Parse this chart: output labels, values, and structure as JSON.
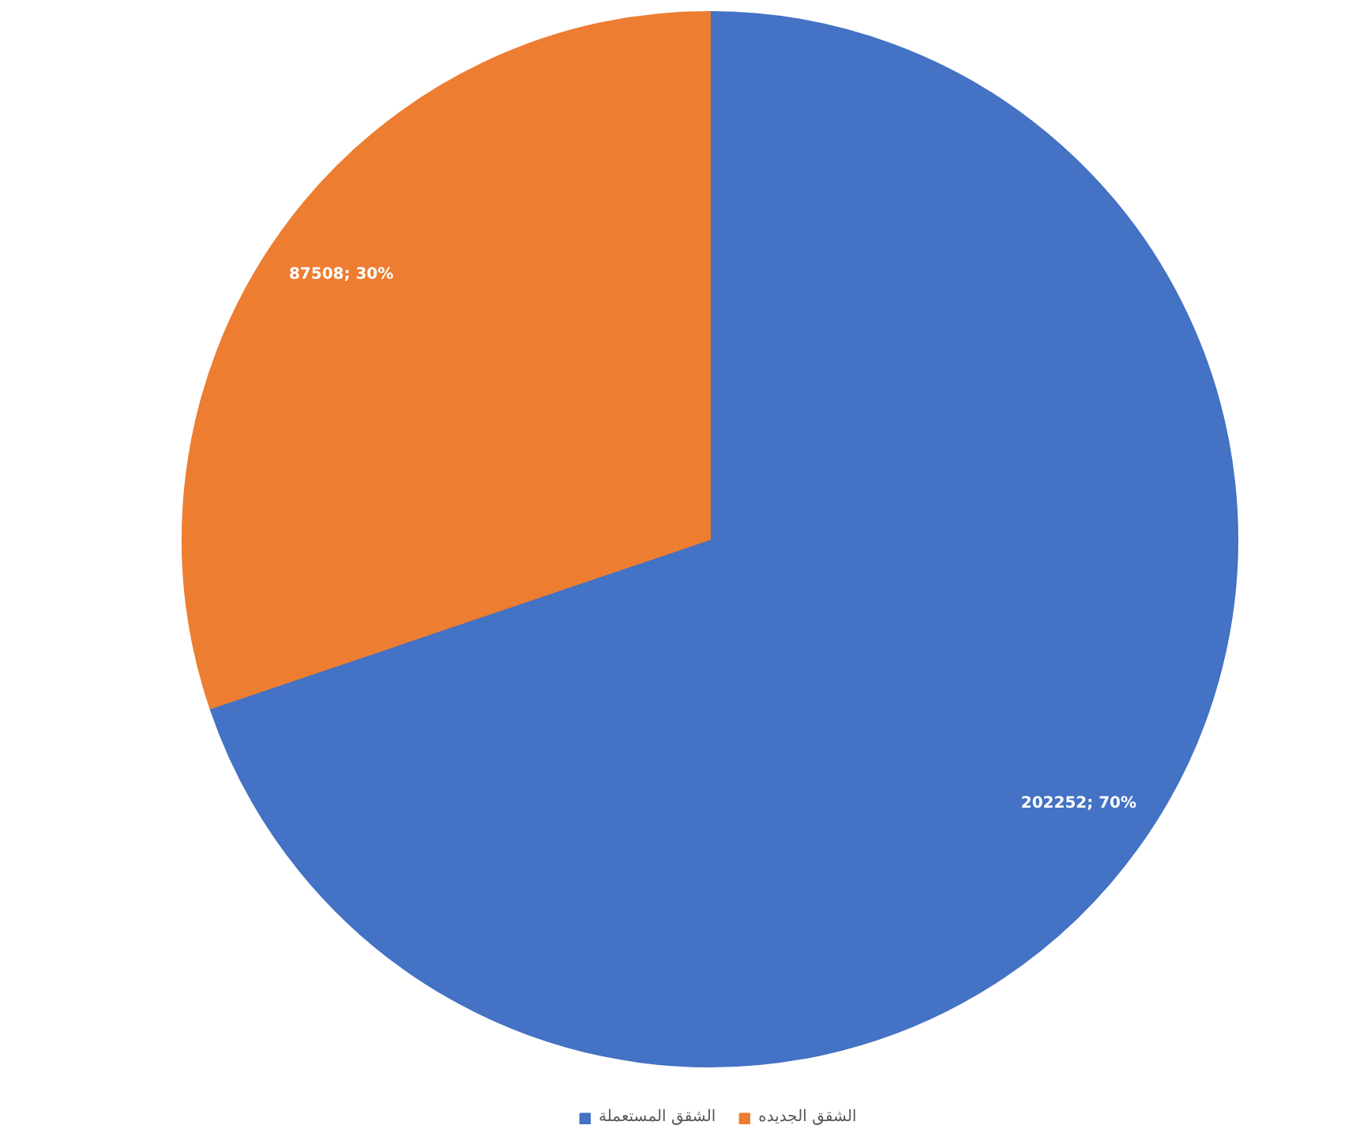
{
  "chart_data": {
    "type": "pie",
    "categories": [
      "الشقق المستعملة",
      "الشقق الجديده"
    ],
    "values": [
      202252,
      87508
    ],
    "colors": [
      "#4472c4",
      "#ed7d31"
    ],
    "value_labels": [
      "202252; 70%",
      "87508; 30%"
    ],
    "legend": "bottom"
  }
}
